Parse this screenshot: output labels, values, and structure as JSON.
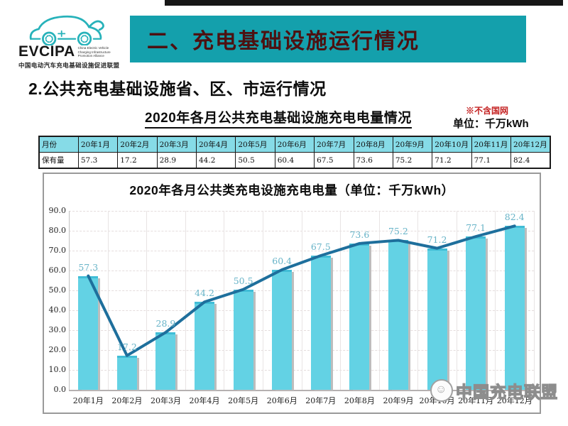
{
  "header": {
    "brand": "EVCIPA",
    "brand_tagline_en": [
      "China Electric Vehicle",
      "Charging Infrastructure",
      "Promotion Alliance"
    ],
    "brand_tagline_cn": "中国电动汽车充电基础设施促进联盟",
    "banner_title": "二、充电基础设施运行情况"
  },
  "section": {
    "heading": "2.公共充电基础设施省、区、市运行情况"
  },
  "stats_table": {
    "title": "2020年各月公共充电基础设施充电电量情况",
    "note": "※不含国网",
    "unit": "单位：千万kWh",
    "row_header": "月份",
    "value_row_header": "保有量",
    "months": [
      "20年1月",
      "20年2月",
      "20年3月",
      "20年4月",
      "20年5月",
      "20年6月",
      "20年7月",
      "20年8月",
      "20年9月",
      "20年10月",
      "20年11月",
      "20年12月"
    ],
    "values": [
      57.3,
      17.2,
      28.9,
      44.2,
      50.5,
      60.4,
      67.5,
      73.6,
      75.2,
      71.2,
      77.1,
      82.4
    ]
  },
  "chart_data": {
    "type": "bar",
    "overlay": "line",
    "title": "2020年各月公共类充电设施充电电量（单位：千万kWh）",
    "categories": [
      "20年1月",
      "20年2月",
      "20年3月",
      "20年4月",
      "20年5月",
      "20年6月",
      "20年7月",
      "20年8月",
      "20年9月",
      "20年10月",
      "20年11月",
      "20年12月"
    ],
    "values": [
      57.3,
      17.2,
      28.9,
      44.2,
      50.5,
      60.4,
      67.5,
      73.6,
      75.2,
      71.2,
      77.1,
      82.4
    ],
    "xlabel": "",
    "ylabel": "",
    "ylim": [
      0,
      90
    ],
    "ytick_step": 10,
    "grid": true,
    "legend": "none",
    "colors": {
      "bar_fill": "#63d2e4",
      "bar_top": "#41bdd6",
      "line": "#1e6f9c",
      "point_label": "#68b4c8"
    }
  },
  "watermark": {
    "text": "中国充电联盟"
  },
  "colors": {
    "banner_bg": "#14a0ac",
    "banner_text": "#4d1111",
    "table_header_bg": "#86dbe7",
    "note_red": "#c42222"
  }
}
